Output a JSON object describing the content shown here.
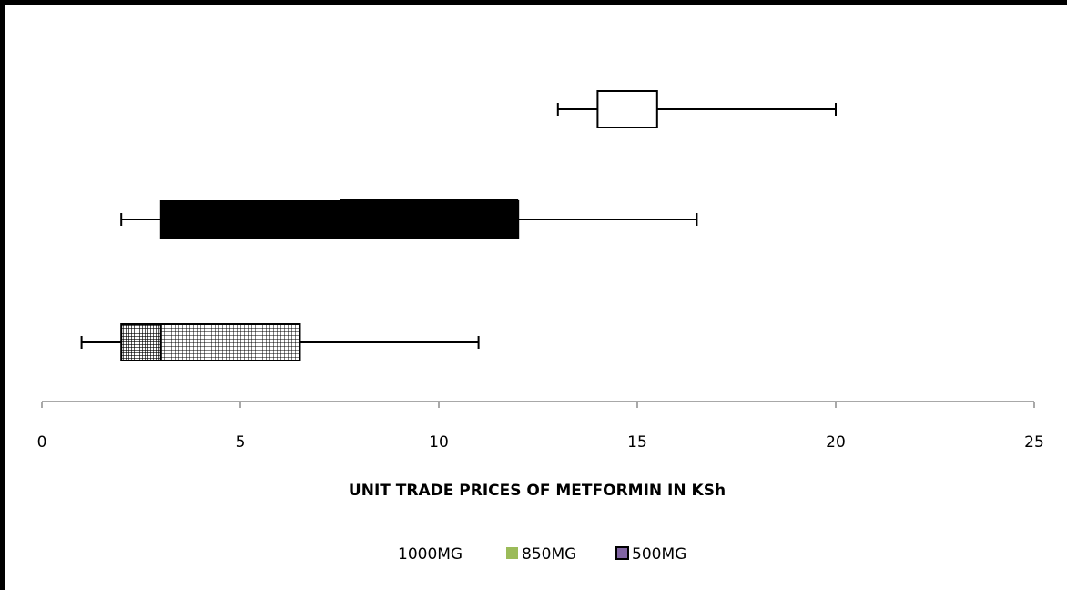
{
  "chart_data": {
    "type": "boxplot",
    "orientation": "horizontal",
    "title": "",
    "xlabel": "UNIT TRADE PRICES OF METFORMIN IN KSh",
    "ylabel": "",
    "xlim": [
      0,
      25
    ],
    "xticks": [
      0,
      5,
      10,
      15,
      20,
      25
    ],
    "legend_position": "bottom",
    "series": [
      {
        "name": "1000MG",
        "min": 13,
        "q1": 14,
        "median": 14,
        "q3": 15.5,
        "max": 20,
        "fill": "#ffffff",
        "pattern": "none"
      },
      {
        "name": "850MG",
        "min": 2,
        "q1": 3,
        "median": 7.5,
        "q3": 12,
        "max": 16.5,
        "fill": "#000000",
        "pattern": "solid",
        "legend_color": "#9bbb59"
      },
      {
        "name": "500MG",
        "min": 1,
        "q1": 2,
        "median": 3,
        "q3": 6.5,
        "max": 11,
        "fill": "#ffffff",
        "pattern": "grid",
        "legend_color": "#8064a2"
      }
    ]
  }
}
